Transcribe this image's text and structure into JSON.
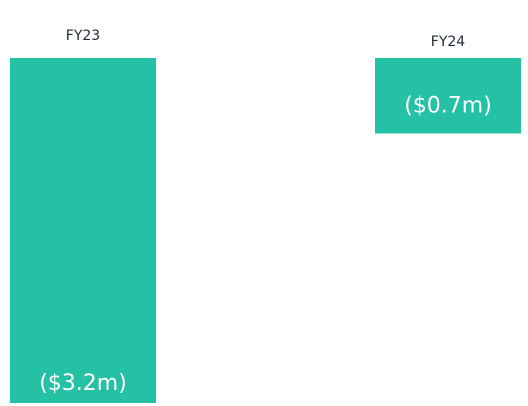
{
  "chart_data": {
    "type": "bar",
    "categories": [
      "FY23",
      "FY24"
    ],
    "values": [
      -3.2,
      -0.7
    ],
    "value_labels": [
      "($3.2m)",
      "($0.7m)"
    ],
    "color": "#25c1a4"
  }
}
